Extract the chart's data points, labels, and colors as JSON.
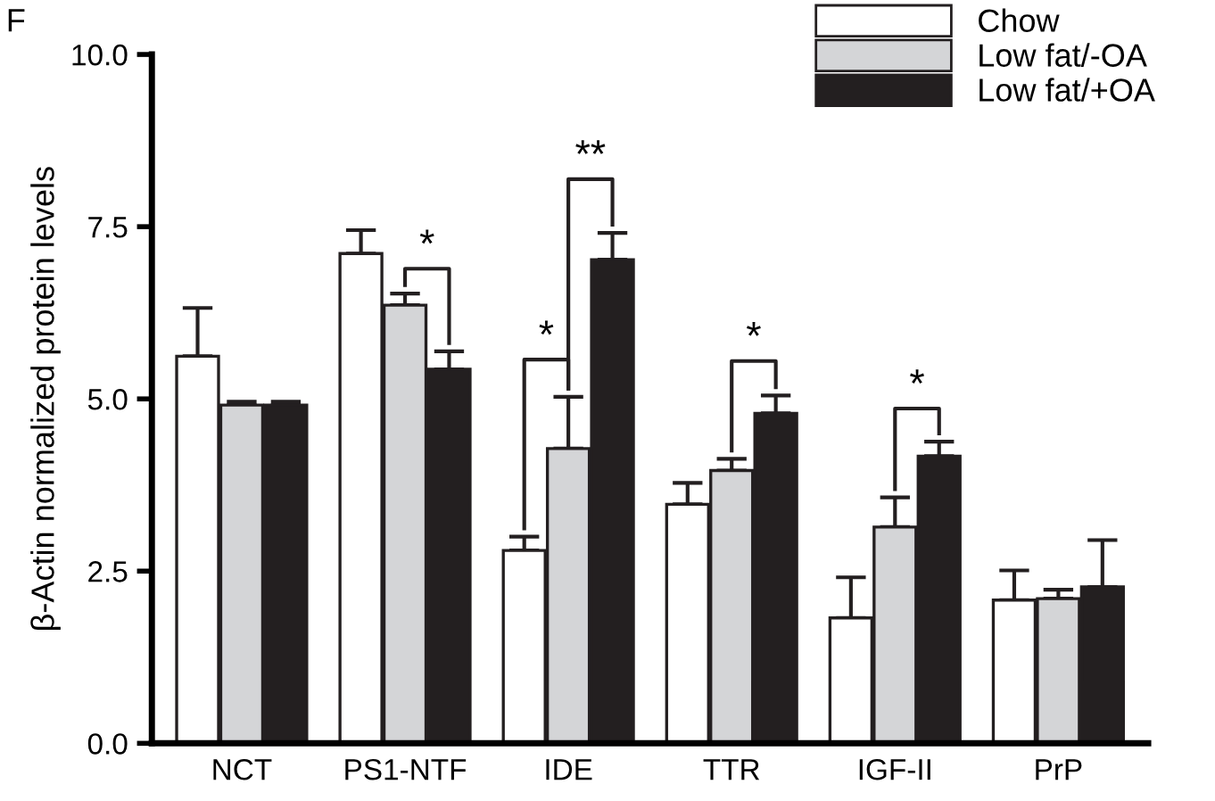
{
  "chart_data": {
    "type": "bar",
    "ylabel": "β-Actin normalized protein levels",
    "categories": [
      "NCT",
      "PS1-NTF",
      "IDE",
      "TTR",
      "IGF-II",
      "PrP"
    ],
    "series": [
      {
        "name": "Chow",
        "color": "#ffffff",
        "values": [
          5.62,
          7.11,
          2.8,
          3.47,
          1.82,
          2.08
        ],
        "errors": [
          [
            5.62,
            6.32
          ],
          [
            7.11,
            7.45
          ],
          [
            2.8,
            3.0
          ],
          [
            3.47,
            3.78
          ],
          [
            1.82,
            2.41
          ],
          [
            2.08,
            2.51
          ]
        ]
      },
      {
        "name": "Low fat/-OA",
        "color": "#d4d5d7",
        "values": [
          4.91,
          6.36,
          4.28,
          3.96,
          3.14,
          2.1
        ],
        "errors": [
          [
            4.91,
            4.96
          ],
          [
            6.36,
            6.53
          ],
          [
            4.28,
            5.03
          ],
          [
            3.96,
            4.13
          ],
          [
            3.14,
            3.57
          ],
          [
            2.1,
            2.23
          ]
        ]
      },
      {
        "name": "Low fat/+OA",
        "color": "#231f20",
        "values": [
          4.91,
          5.43,
          7.02,
          4.79,
          4.17,
          2.27
        ],
        "errors": [
          [
            4.91,
            4.96
          ],
          [
            5.43,
            5.69
          ],
          [
            7.02,
            7.41
          ],
          [
            4.79,
            5.05
          ],
          [
            4.17,
            4.38
          ],
          [
            2.27,
            2.95
          ]
        ]
      }
    ],
    "ylim": [
      0,
      10
    ],
    "yticks": [
      {
        "value": 0,
        "label": "0.0"
      },
      {
        "value": 2.5,
        "label": "2.5"
      },
      {
        "value": 5,
        "label": "5.0"
      },
      {
        "value": 7.5,
        "label": "7.5"
      },
      {
        "value": 10,
        "label": "10.0"
      }
    ],
    "grid": false,
    "legend": "top right",
    "annotations": [
      "F",
      "*",
      "*",
      "**",
      "*",
      "*"
    ]
  }
}
